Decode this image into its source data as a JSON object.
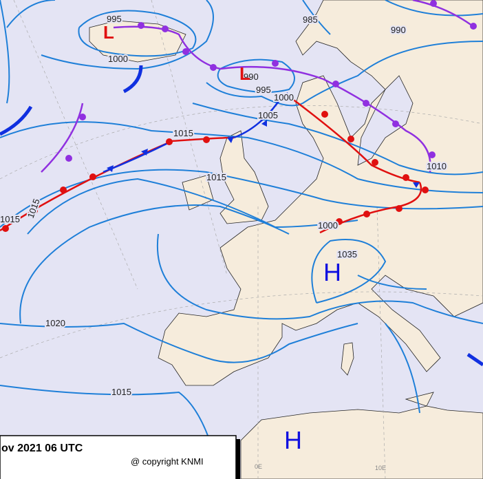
{
  "isobar_labels": [
    "995",
    "1000",
    "985",
    "990",
    "990",
    "995",
    "1000",
    "1005",
    "1015",
    "1015",
    "1015",
    "1015",
    "1010",
    "1000",
    "1035",
    "1020",
    "1015"
  ],
  "pressure_centers": [
    "L",
    "L",
    "H",
    "H"
  ],
  "longitude_labels": [
    "0E",
    "10E"
  ],
  "footer": {
    "date": "ov 2021 06 UTC",
    "copyright": "@ copyright KNMI"
  }
}
